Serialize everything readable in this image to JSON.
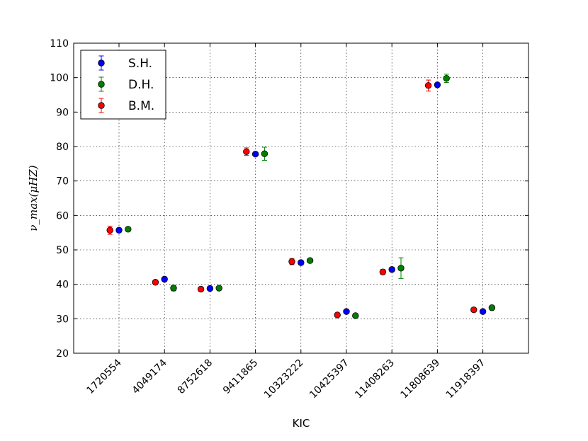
{
  "chart_data": {
    "type": "scatter",
    "xlabel": "KIC",
    "ylabel": "ν_max(μHZ)",
    "ylim": [
      20,
      110
    ],
    "yticks": [
      20,
      30,
      40,
      50,
      60,
      70,
      80,
      90,
      100,
      110
    ],
    "grid": true,
    "legend_position": "top-left",
    "categories": [
      "1720554",
      "4049174",
      "8752618",
      "9411865",
      "10323222",
      "10425397",
      "11408263",
      "11808639",
      "11918397"
    ],
    "series": [
      {
        "name": "S.H.",
        "color": "#0000ff",
        "offset": 0,
        "values": [
          55.7,
          41.5,
          38.8,
          77.8,
          46.3,
          32.1,
          44.3,
          97.9,
          32.1
        ],
        "errors": [
          0.6,
          0.6,
          0.5,
          0.5,
          0.6,
          0.5,
          0.6,
          0.5,
          0.5
        ]
      },
      {
        "name": "D.H.",
        "color": "#008000",
        "offset": 1,
        "values": [
          56.0,
          38.9,
          38.9,
          77.9,
          46.9,
          30.9,
          44.7,
          99.8,
          33.2
        ],
        "errors": [
          0.5,
          0.8,
          0.5,
          1.9,
          0.4,
          0.4,
          3.0,
          1.2,
          0.5
        ]
      },
      {
        "name": "B.M.",
        "color": "#ff0000",
        "offset": -1,
        "values": [
          55.7,
          40.6,
          38.6,
          78.5,
          46.6,
          31.1,
          43.6,
          97.7,
          32.6
        ],
        "errors": [
          1.2,
          0.6,
          0.6,
          1.1,
          0.9,
          0.5,
          0.7,
          1.6,
          0.5
        ]
      }
    ]
  }
}
